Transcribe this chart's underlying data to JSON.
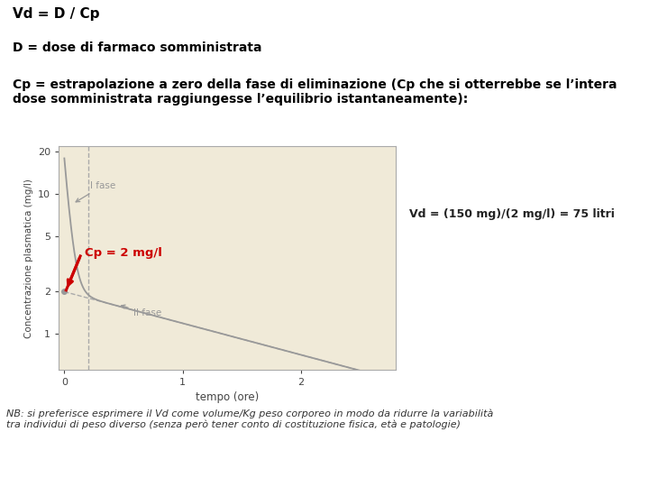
{
  "title_line1": "Vd = D / Cp",
  "title_line2": "D = dose di farmaco somministrata",
  "title_line3": "Cp = estrapolazione a zero della fase di eliminazione (Cp che si otterrebbe se l’intera dose somministrata raggiungesse l’equilibrio istantaneamente):",
  "footnote": "NB: si preferisce esprimere il Vd come volume/Kg peso corporeo in modo da ridurre la variabilità\ntra individui di peso diverso (senza però tener conto di costituzione fisica, età e patologie)",
  "cp_label": "Cp = 2 mg/l",
  "vd_label": "Vd = (150 mg)/(2 mg/l) = 75 litri",
  "fase1_label": "I fase",
  "fase2_label": "II fase",
  "xlabel": "tempo (ore)",
  "ylabel": "Concentrazione plasmatica (mg/l)",
  "plot_bg": "#f0ead8",
  "page_bg": "#ffffff",
  "curve_color": "#999999",
  "red_arrow_color": "#cc0000",
  "dashed_color": "#aaaaaa",
  "cp_text_color": "#cc0000",
  "vd_text_color": "#222222",
  "annotation_color": "#999999",
  "yticks": [
    1,
    2,
    5,
    10,
    20
  ],
  "xticks": [
    0,
    1,
    2
  ],
  "ylim": [
    0.0,
    22
  ],
  "xlim": [
    -0.05,
    2.8
  ],
  "A": 16,
  "alpha": 25.0,
  "B": 2.0,
  "beta": 0.52
}
